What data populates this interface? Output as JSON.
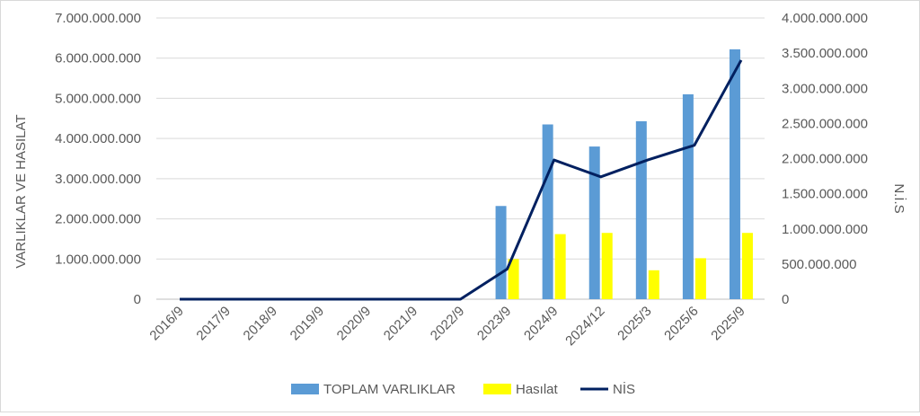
{
  "chart_data": {
    "type": "bar",
    "categories": [
      "2016/9",
      "2017/9",
      "2018/9",
      "2019/9",
      "2020/9",
      "2021/9",
      "2022/9",
      "2023/9",
      "2024/9",
      "2024/12",
      "2025/3",
      "2025/6",
      "2025/9"
    ],
    "series": [
      {
        "name": "TOPLAM VARLIKLAR",
        "type": "bar",
        "axis": "left",
        "color": "#5B9BD5",
        "values": [
          0,
          0,
          0,
          0,
          0,
          0,
          0,
          2320000000,
          4350000000,
          3800000000,
          4430000000,
          5100000000,
          6220000000
        ]
      },
      {
        "name": "Hasılat",
        "type": "bar",
        "axis": "left",
        "color": "#FFFF00",
        "values": [
          0,
          0,
          0,
          0,
          0,
          0,
          0,
          1000000000,
          1620000000,
          1650000000,
          720000000,
          1020000000,
          1650000000
        ]
      },
      {
        "name": "NİS",
        "type": "line",
        "axis": "right",
        "color": "#002060",
        "values": [
          0,
          0,
          0,
          0,
          0,
          0,
          0,
          430000000,
          1980000000,
          1740000000,
          1980000000,
          2190000000,
          3400000000
        ]
      }
    ],
    "ylabel": "VARLIKLAR VE HASILAT",
    "y2label": "N.İ.S",
    "ylim": [
      0,
      7000000000
    ],
    "y2lim": [
      0,
      4000000000
    ],
    "yticks": [
      "0",
      "1.000.000.000",
      "2.000.000.000",
      "3.000.000.000",
      "4.000.000.000",
      "5.000.000.000",
      "6.000.000.000",
      "7.000.000.000"
    ],
    "y2ticks": [
      "0",
      "500.000.000",
      "1.000.000.000",
      "1.500.000.000",
      "2.000.000.000",
      "2.500.000.000",
      "3.000.000.000",
      "3.500.000.000",
      "4.000.000.000"
    ],
    "grid": true,
    "legend": "bottom"
  }
}
